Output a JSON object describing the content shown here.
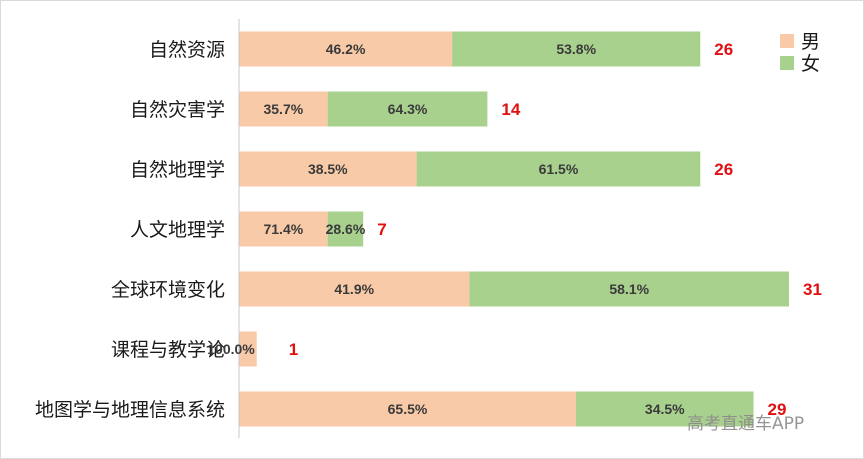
{
  "chart_data": {
    "type": "bar",
    "orientation": "horizontal",
    "stacked": true,
    "categories": [
      "自然资源",
      "自然灾害学",
      "自然地理学",
      "人文地理学",
      "全球环境变化",
      "课程与教学论",
      "地图学与地理信息系统"
    ],
    "series": [
      {
        "name": "男",
        "color": "#f8caa8",
        "percent_labels": [
          "46.2%",
          "35.7%",
          "38.5%",
          "71.4%",
          "41.9%",
          "100.0%",
          "65.5%"
        ]
      },
      {
        "name": "女",
        "color": "#a9d18e",
        "percent_labels": [
          "53.8%",
          "64.3%",
          "61.5%",
          "28.6%",
          "58.1%",
          "",
          "34.5%"
        ]
      }
    ],
    "male_share": [
      0.462,
      0.357,
      0.385,
      0.714,
      0.419,
      1.0,
      0.655
    ],
    "totals": [
      26,
      14,
      26,
      7,
      31,
      1,
      29
    ],
    "legend_position": "top-right",
    "grid": false
  },
  "watermark": "高考直通车APP"
}
